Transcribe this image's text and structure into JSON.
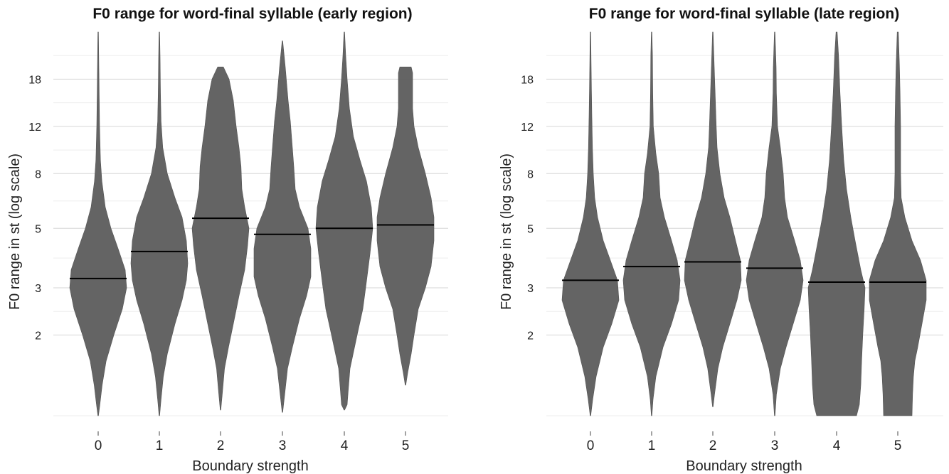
{
  "chart_data": [
    {
      "type": "violin",
      "title": "F0 range for word-final syllable (early region)",
      "xlabel": "Boundary strength",
      "ylabel": "F0 range in st (log scale)",
      "y_scale": "log",
      "ylim": [
        1,
        27
      ],
      "y_ticks": [
        2,
        3,
        5,
        8,
        12,
        18
      ],
      "categories": [
        "0",
        "1",
        "2",
        "3",
        "4",
        "5"
      ],
      "medians": [
        3.25,
        4.1,
        5.45,
        4.75,
        5.0,
        5.15
      ],
      "grid": true,
      "violin_color": "#5f5f5f",
      "violins": [
        {
          "category": "0",
          "min": 1.0,
          "max": 27.0,
          "width_profile": [
            [
              1.0,
              0.01
            ],
            [
              1.1,
              0.06
            ],
            [
              1.3,
              0.14
            ],
            [
              1.6,
              0.28
            ],
            [
              2.0,
              0.55
            ],
            [
              2.5,
              0.85
            ],
            [
              3.0,
              1.0
            ],
            [
              3.5,
              0.95
            ],
            [
              4.2,
              0.7
            ],
            [
              5.0,
              0.45
            ],
            [
              6.0,
              0.25
            ],
            [
              7.5,
              0.13
            ],
            [
              9.0,
              0.08
            ],
            [
              12.0,
              0.05
            ],
            [
              16.0,
              0.035
            ],
            [
              22.0,
              0.02
            ],
            [
              27.0,
              0.01
            ]
          ]
        },
        {
          "category": "1",
          "min": 1.0,
          "max": 27.0,
          "width_profile": [
            [
              1.0,
              0.01
            ],
            [
              1.15,
              0.06
            ],
            [
              1.4,
              0.14
            ],
            [
              1.7,
              0.28
            ],
            [
              2.2,
              0.55
            ],
            [
              2.7,
              0.8
            ],
            [
              3.2,
              0.95
            ],
            [
              3.7,
              1.0
            ],
            [
              4.5,
              0.95
            ],
            [
              5.5,
              0.8
            ],
            [
              6.5,
              0.55
            ],
            [
              8.0,
              0.28
            ],
            [
              10.0,
              0.12
            ],
            [
              12.5,
              0.06
            ],
            [
              16.0,
              0.04
            ],
            [
              22.0,
              0.025
            ],
            [
              27.0,
              0.01
            ]
          ]
        },
        {
          "category": "2",
          "min": 1.05,
          "max": 20.0,
          "width_profile": [
            [
              1.05,
              0.01
            ],
            [
              1.2,
              0.06
            ],
            [
              1.5,
              0.14
            ],
            [
              1.8,
              0.28
            ],
            [
              2.2,
              0.45
            ],
            [
              2.8,
              0.65
            ],
            [
              3.5,
              0.85
            ],
            [
              4.3,
              0.95
            ],
            [
              5.0,
              1.0
            ],
            [
              6.0,
              0.85
            ],
            [
              7.0,
              0.75
            ],
            [
              8.5,
              0.72
            ],
            [
              10.0,
              0.65
            ],
            [
              12.0,
              0.55
            ],
            [
              15.0,
              0.45
            ],
            [
              18.0,
              0.3
            ],
            [
              20.0,
              0.1
            ]
          ]
        },
        {
          "category": "3",
          "min": 1.03,
          "max": 25.0,
          "width_profile": [
            [
              1.03,
              0.01
            ],
            [
              1.2,
              0.08
            ],
            [
              1.5,
              0.18
            ],
            [
              1.8,
              0.35
            ],
            [
              2.3,
              0.6
            ],
            [
              2.8,
              0.85
            ],
            [
              3.3,
              1.0
            ],
            [
              4.2,
              1.0
            ],
            [
              5.0,
              0.9
            ],
            [
              6.0,
              0.6
            ],
            [
              7.0,
              0.45
            ],
            [
              8.5,
              0.4
            ],
            [
              10.0,
              0.35
            ],
            [
              12.5,
              0.28
            ],
            [
              15.0,
              0.2
            ],
            [
              20.0,
              0.1
            ],
            [
              25.0,
              0.01
            ]
          ]
        },
        {
          "category": "4",
          "min": 1.05,
          "max": 27.0,
          "width_profile": [
            [
              1.05,
              0.01
            ],
            [
              1.1,
              0.1
            ],
            [
              1.25,
              0.14
            ],
            [
              1.5,
              0.2
            ],
            [
              2.0,
              0.45
            ],
            [
              2.5,
              0.65
            ],
            [
              3.0,
              0.75
            ],
            [
              4.0,
              0.9
            ],
            [
              5.0,
              1.0
            ],
            [
              6.0,
              0.95
            ],
            [
              7.5,
              0.78
            ],
            [
              9.0,
              0.55
            ],
            [
              11.0,
              0.32
            ],
            [
              14.0,
              0.18
            ],
            [
              18.0,
              0.1
            ],
            [
              22.0,
              0.05
            ],
            [
              27.0,
              0.01
            ]
          ]
        },
        {
          "category": "5",
          "min": 1.3,
          "max": 20.0,
          "width_profile": [
            [
              1.3,
              0.01
            ],
            [
              1.45,
              0.08
            ],
            [
              1.7,
              0.2
            ],
            [
              2.0,
              0.3
            ],
            [
              2.5,
              0.45
            ],
            [
              3.0,
              0.7
            ],
            [
              3.6,
              0.9
            ],
            [
              4.5,
              1.0
            ],
            [
              5.5,
              1.0
            ],
            [
              6.5,
              0.9
            ],
            [
              8.0,
              0.7
            ],
            [
              10.0,
              0.45
            ],
            [
              12.0,
              0.3
            ],
            [
              14.0,
              0.25
            ],
            [
              17.0,
              0.25
            ],
            [
              19.0,
              0.25
            ],
            [
              20.0,
              0.2
            ]
          ]
        }
      ]
    },
    {
      "type": "violin",
      "title": "F0 range for word-final syllable (late region)",
      "xlabel": "Boundary strength",
      "ylabel": "F0 range in st (log scale)",
      "y_scale": "log",
      "ylim": [
        1,
        27
      ],
      "y_ticks": [
        2,
        3,
        5,
        8,
        12,
        18
      ],
      "categories": [
        "0",
        "1",
        "2",
        "3",
        "4",
        "5"
      ],
      "medians": [
        3.2,
        3.6,
        3.75,
        3.55,
        3.15,
        3.15
      ],
      "grid": true,
      "violin_color": "#5f5f5f",
      "violins": [
        {
          "category": "0",
          "min": 1.0,
          "max": 27.0,
          "width_profile": [
            [
              1.0,
              0.01
            ],
            [
              1.15,
              0.08
            ],
            [
              1.4,
              0.2
            ],
            [
              1.8,
              0.45
            ],
            [
              2.2,
              0.75
            ],
            [
              2.7,
              1.0
            ],
            [
              3.2,
              0.95
            ],
            [
              3.8,
              0.7
            ],
            [
              4.5,
              0.45
            ],
            [
              5.5,
              0.25
            ],
            [
              6.5,
              0.15
            ],
            [
              8.0,
              0.1
            ],
            [
              10.0,
              0.07
            ],
            [
              13.0,
              0.05
            ],
            [
              18.0,
              0.03
            ],
            [
              27.0,
              0.01
            ]
          ]
        },
        {
          "category": "1",
          "min": 1.0,
          "max": 27.0,
          "width_profile": [
            [
              1.0,
              0.01
            ],
            [
              1.15,
              0.05
            ],
            [
              1.4,
              0.15
            ],
            [
              1.8,
              0.4
            ],
            [
              2.2,
              0.7
            ],
            [
              2.7,
              0.95
            ],
            [
              3.2,
              1.0
            ],
            [
              3.8,
              0.9
            ],
            [
              4.5,
              0.7
            ],
            [
              5.5,
              0.45
            ],
            [
              6.5,
              0.3
            ],
            [
              8.0,
              0.25
            ],
            [
              9.5,
              0.15
            ],
            [
              12.0,
              0.06
            ],
            [
              16.0,
              0.04
            ],
            [
              22.0,
              0.03
            ],
            [
              27.0,
              0.01
            ]
          ]
        },
        {
          "category": "2",
          "min": 1.08,
          "max": 27.0,
          "width_profile": [
            [
              1.08,
              0.01
            ],
            [
              1.2,
              0.06
            ],
            [
              1.5,
              0.18
            ],
            [
              1.8,
              0.35
            ],
            [
              2.2,
              0.6
            ],
            [
              2.7,
              0.85
            ],
            [
              3.2,
              1.0
            ],
            [
              3.8,
              0.97
            ],
            [
              4.5,
              0.8
            ],
            [
              5.5,
              0.6
            ],
            [
              6.5,
              0.4
            ],
            [
              8.0,
              0.25
            ],
            [
              10.0,
              0.15
            ],
            [
              12.0,
              0.12
            ],
            [
              15.0,
              0.09
            ],
            [
              20.0,
              0.05
            ],
            [
              27.0,
              0.01
            ]
          ]
        },
        {
          "category": "3",
          "min": 1.0,
          "max": 27.0,
          "width_profile": [
            [
              1.0,
              0.01
            ],
            [
              1.2,
              0.06
            ],
            [
              1.5,
              0.2
            ],
            [
              1.8,
              0.4
            ],
            [
              2.2,
              0.65
            ],
            [
              2.7,
              0.9
            ],
            [
              3.2,
              1.0
            ],
            [
              3.8,
              0.9
            ],
            [
              4.5,
              0.7
            ],
            [
              5.5,
              0.45
            ],
            [
              6.5,
              0.35
            ],
            [
              8.0,
              0.3
            ],
            [
              10.0,
              0.2
            ],
            [
              12.0,
              0.1
            ],
            [
              16.0,
              0.06
            ],
            [
              20.0,
              0.05
            ],
            [
              27.0,
              0.01
            ]
          ]
        },
        {
          "category": "4",
          "min": 1.0,
          "max": 27.0,
          "width_profile": [
            [
              1.0,
              0.7
            ],
            [
              1.1,
              0.8
            ],
            [
              1.3,
              0.85
            ],
            [
              1.6,
              0.88
            ],
            [
              2.0,
              0.92
            ],
            [
              2.5,
              0.97
            ],
            [
              3.0,
              1.0
            ],
            [
              3.5,
              0.85
            ],
            [
              4.5,
              0.65
            ],
            [
              5.5,
              0.5
            ],
            [
              7.0,
              0.35
            ],
            [
              9.0,
              0.25
            ],
            [
              12.0,
              0.18
            ],
            [
              16.0,
              0.12
            ],
            [
              22.0,
              0.07
            ],
            [
              27.0,
              0.02
            ]
          ]
        },
        {
          "category": "5",
          "min": 1.0,
          "max": 27.0,
          "width_profile": [
            [
              1.0,
              0.5
            ],
            [
              1.2,
              0.52
            ],
            [
              1.4,
              0.55
            ],
            [
              1.6,
              0.6
            ],
            [
              1.8,
              0.7
            ],
            [
              2.2,
              0.85
            ],
            [
              2.7,
              1.0
            ],
            [
              3.2,
              1.0
            ],
            [
              3.8,
              0.8
            ],
            [
              4.5,
              0.5
            ],
            [
              5.5,
              0.25
            ],
            [
              6.5,
              0.12
            ],
            [
              8.0,
              0.1
            ],
            [
              10.0,
              0.1
            ],
            [
              12.0,
              0.1
            ],
            [
              16.0,
              0.08
            ],
            [
              20.0,
              0.06
            ],
            [
              27.0,
              0.02
            ]
          ]
        }
      ]
    }
  ]
}
